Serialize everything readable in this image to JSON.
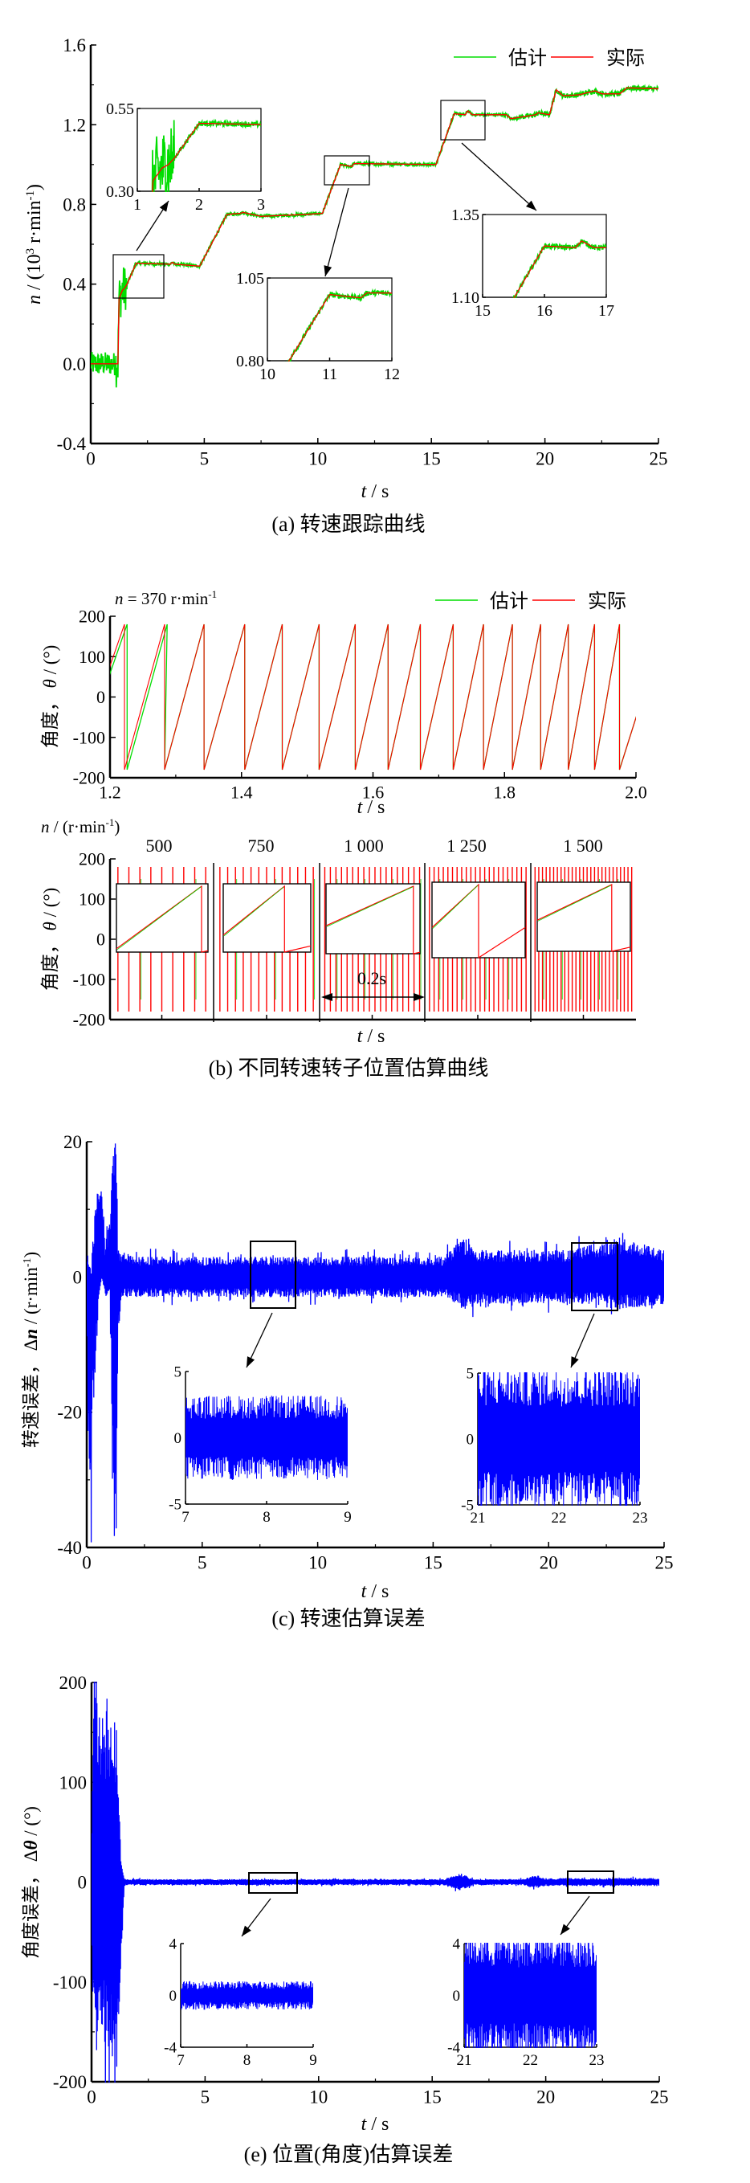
{
  "chart_data": [
    {
      "id": "a",
      "type": "line",
      "caption": "(a)  转速跟踪曲线",
      "xlabel": {
        "var": "t",
        "unit": " / s"
      },
      "ylabel": {
        "var": "n",
        "pre": " / (10",
        "sup1": "3",
        "mid": " r·min",
        "sup2": "-1",
        "post": ")"
      },
      "xlim": [
        0,
        25
      ],
      "ylim": [
        -0.4,
        1.6
      ],
      "xticks": [
        "0",
        "5",
        "10",
        "15",
        "20",
        "25"
      ],
      "yticks": [
        "-0.4",
        "0.0",
        "0.4",
        "0.8",
        "1.2",
        "1.6"
      ],
      "legend": [
        "估计",
        "实际"
      ],
      "legend_position": "top-right",
      "colors": {
        "estimate": "#00dd00",
        "actual": "#ff0000"
      },
      "actual": {
        "t": [
          0,
          1.2,
          1.25,
          1.4,
          1.5,
          1.6,
          2.0,
          3.5,
          3.6,
          3.7,
          4.8,
          6.0,
          6.6,
          6.7,
          7.5,
          9.5,
          10.2,
          11.0,
          11.5,
          11.6,
          15.2,
          16.0,
          16.5,
          16.6,
          16.8,
          18.3,
          18.5,
          19.6,
          19.7,
          20.2,
          20.5,
          20.8,
          21.5,
          22.2,
          22.5,
          23.3,
          23.6,
          25
        ],
        "n": [
          0,
          0,
          0.33,
          0.37,
          0.38,
          0.4,
          0.505,
          0.5,
          0.51,
          0.5,
          0.49,
          0.75,
          0.755,
          0.76,
          0.74,
          0.75,
          0.755,
          1.0,
          0.99,
          1.005,
          1.0,
          1.255,
          1.25,
          1.27,
          1.25,
          1.25,
          1.23,
          1.25,
          1.26,
          1.25,
          1.375,
          1.345,
          1.35,
          1.37,
          1.355,
          1.355,
          1.385,
          1.38
        ]
      },
      "estimate_noise": {
        "early": 0.12,
        "steady": 0.008
      },
      "insets": [
        {
          "xlim": [
            1,
            3
          ],
          "ylim": [
            0.3,
            0.55
          ],
          "xticks": [
            "1",
            "2",
            "3"
          ],
          "yticks": [
            "0.30",
            "0.55"
          ],
          "source": {
            "t": [
              1,
              3
            ],
            "n": [
              0.33,
              0.55
            ]
          }
        },
        {
          "xlim": [
            10,
            12
          ],
          "ylim": [
            0.8,
            1.05
          ],
          "xticks": [
            "10",
            "11",
            "12"
          ],
          "yticks": [
            "0.80",
            "1.05"
          ],
          "source": {
            "t": [
              10,
              12
            ],
            "n": [
              0.93,
              1.05
            ]
          }
        },
        {
          "xlim": [
            15,
            17
          ],
          "ylim": [
            1.1,
            1.35
          ],
          "xticks": [
            "15",
            "16",
            "17"
          ],
          "yticks": [
            "1.10",
            "1.35"
          ],
          "source": {
            "t": [
              15,
              17
            ],
            "n": [
              1.12,
              1.35
            ]
          }
        }
      ]
    },
    {
      "id": "b1",
      "type": "line",
      "annotation": {
        "pre": "n",
        "mid": " = 370 r·min",
        "sup": "-1"
      },
      "xlabel": {
        "var": "t",
        "unit": " / s"
      },
      "ylabel": {
        "pre": "角度， ",
        "var": "θ",
        "unit": " / (°)"
      },
      "xlim": [
        1.2,
        2.0
      ],
      "ylim": [
        -200,
        200
      ],
      "xticks": [
        "1.2",
        "1.4",
        "1.6",
        "1.8",
        "2.0"
      ],
      "yticks": [
        "-200",
        "-100",
        "0",
        "100",
        "200"
      ],
      "legend": [
        "估计",
        "实际"
      ],
      "legend_position": "top-right",
      "colors": {
        "estimate": "#00dd00",
        "actual": "#ff0000"
      },
      "resets": [
        1.222,
        1.283,
        1.343,
        1.405,
        1.462,
        1.518,
        1.573,
        1.623,
        1.672,
        1.722,
        1.768,
        1.812,
        1.855,
        1.897,
        1.937,
        1.975
      ],
      "range_deg": [
        -180,
        180
      ]
    },
    {
      "id": "b2",
      "type": "line",
      "speed_label": {
        "pre": "n",
        "mid": " / (r·min",
        "sup": "-1",
        "post": ")"
      },
      "xlabel": {
        "var": "t",
        "unit": " / s"
      },
      "ylabel": {
        "pre": "角度， ",
        "var": "θ",
        "unit": " / (°)"
      },
      "ylim": [
        -200,
        200
      ],
      "yticks": [
        "-200",
        "-100",
        "0",
        "100",
        "200"
      ],
      "segments": [
        {
          "speed": "500",
          "teeth": 9
        },
        {
          "speed": "750",
          "teeth": 13
        },
        {
          "speed": "1 000",
          "teeth": 18
        },
        {
          "speed": "1 250",
          "teeth": 22
        },
        {
          "speed": "1 500",
          "teeth": 27
        }
      ],
      "segment_duration": "0.2s",
      "caption": "(b)  不同转速转子位置估算曲线"
    },
    {
      "id": "c",
      "type": "line",
      "caption": "(c)  转速估算误差",
      "xlabel": {
        "var": "t",
        "unit": " / s"
      },
      "ylabel": {
        "pre": "转速误差，  Δ",
        "var": "n",
        "unit": " / (r·min",
        "sup": "-1",
        "post": ")"
      },
      "xlim": [
        0,
        25
      ],
      "ylim": [
        -40,
        20
      ],
      "xticks": [
        "0",
        "5",
        "10",
        "15",
        "20",
        "25"
      ],
      "yticks": [
        "-40",
        "-20",
        "0",
        "20"
      ],
      "color": "#0000ff",
      "envelope": [
        [
          0,
          3,
          -3
        ],
        [
          0.1,
          2,
          -40
        ],
        [
          0.2,
          0,
          -40
        ],
        [
          0.25,
          5,
          -25
        ],
        [
          0.5,
          16,
          -5
        ],
        [
          0.65,
          15,
          0
        ],
        [
          0.8,
          5,
          -3
        ],
        [
          1.0,
          8,
          -2
        ],
        [
          1.15,
          20,
          -40
        ],
        [
          1.3,
          20,
          -40
        ],
        [
          1.35,
          4,
          -10
        ],
        [
          1.5,
          4,
          -3
        ],
        [
          2,
          3,
          -3
        ],
        [
          15.5,
          3,
          -3
        ],
        [
          16,
          5,
          -4
        ],
        [
          16.5,
          6,
          -5
        ],
        [
          17,
          4,
          -4
        ],
        [
          21,
          4,
          -4
        ],
        [
          22,
          5,
          -4
        ],
        [
          23,
          6,
          -5
        ],
        [
          25,
          4,
          -4
        ]
      ],
      "insets": [
        {
          "xlim": [
            7,
            9
          ],
          "ylim": [
            -5,
            5
          ],
          "xticks": [
            "7",
            "8",
            "9"
          ],
          "yticks": [
            "-5",
            "0",
            "5"
          ],
          "amp": 3.2,
          "source": {
            "t": [
              7,
              9
            ],
            "n": [
              -5,
              5
            ]
          }
        },
        {
          "xlim": [
            21,
            23
          ],
          "ylim": [
            -5,
            5
          ],
          "xticks": [
            "21",
            "22",
            "23"
          ],
          "yticks": [
            "-5",
            "0",
            "5"
          ],
          "amp": 5.5,
          "source": {
            "t": [
              21,
              23
            ],
            "n": [
              -5,
              5
            ]
          }
        }
      ]
    },
    {
      "id": "e",
      "type": "line",
      "caption": "(e) 位置(角度)估算误差",
      "xlabel": {
        "var": "t",
        "unit": " / s"
      },
      "ylabel": {
        "pre": "角度误差，  Δ",
        "var": "θ",
        "unit": " / (°)"
      },
      "xlim": [
        0,
        25
      ],
      "ylim": [
        -200,
        200
      ],
      "xticks": [
        "0",
        "5",
        "10",
        "15",
        "20",
        "25"
      ],
      "yticks": [
        "-200",
        "-100",
        "0",
        "100",
        "200"
      ],
      "color": "#0000ff",
      "envelope": [
        [
          0,
          0,
          0
        ],
        [
          0.05,
          190,
          -170
        ],
        [
          0.2,
          192,
          -170
        ],
        [
          0.8,
          182,
          -180
        ],
        [
          1.1,
          175,
          -200
        ],
        [
          1.3,
          20,
          -80
        ],
        [
          1.45,
          3,
          -3
        ],
        [
          15.5,
          3,
          -3
        ],
        [
          16.3,
          9,
          -9
        ],
        [
          16.8,
          3,
          -3
        ],
        [
          19,
          3,
          -3
        ],
        [
          19.6,
          7,
          -6
        ],
        [
          20,
          4,
          -4
        ],
        [
          25,
          4,
          -4
        ]
      ],
      "insets": [
        {
          "xlim": [
            7,
            9
          ],
          "ylim": [
            -4,
            4
          ],
          "xticks": [
            "7",
            "8",
            "9"
          ],
          "yticks": [
            "-4",
            "0",
            "4"
          ],
          "amp": 1.1,
          "source": {
            "t": [
              7,
              9
            ],
            "n": [
              -8,
              8
            ]
          }
        },
        {
          "xlim": [
            21,
            23
          ],
          "ylim": [
            -4,
            4
          ],
          "xticks": [
            "21",
            "22",
            "23"
          ],
          "yticks": [
            "-4",
            "0",
            "4"
          ],
          "amp": 4.8,
          "source": {
            "t": [
              21,
              23
            ],
            "n": [
              -8,
              8
            ]
          }
        }
      ]
    }
  ]
}
